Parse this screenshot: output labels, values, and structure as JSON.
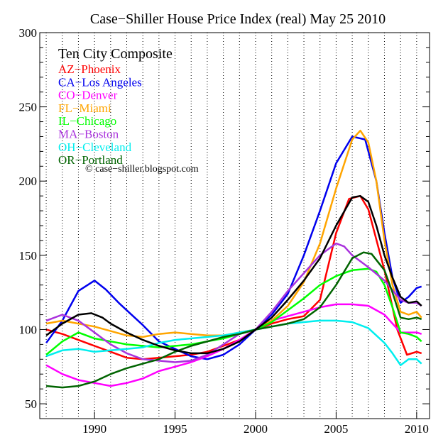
{
  "chart_data": {
    "type": "line",
    "title": "Case−Shiller House Price Index (real) May 25 2010",
    "legend_title": "Ten City Composite",
    "legend_placement": "top-left",
    "credit": "© case−shiller.blogspot.com",
    "xlabel": "",
    "ylabel": "",
    "xlim": [
      1986.6,
      2010.8
    ],
    "ylim": [
      40,
      300
    ],
    "x_ticks": [
      1990,
      1995,
      2000,
      2005,
      2010
    ],
    "y_ticks": [
      50,
      100,
      150,
      200,
      250,
      300
    ],
    "grid": "vertical dotted lines each year",
    "series": [
      {
        "name": "",
        "color": "#000000",
        "values": [
          [
            1987,
            96
          ],
          [
            1988,
            104
          ],
          [
            1989,
            110
          ],
          [
            1989.8,
            111
          ],
          [
            1990.5,
            108
          ],
          [
            1991,
            104
          ],
          [
            1992,
            98
          ],
          [
            1993,
            93
          ],
          [
            1994,
            89
          ],
          [
            1995,
            86
          ],
          [
            1996,
            84
          ],
          [
            1997,
            84
          ],
          [
            1998,
            87
          ],
          [
            1999,
            92
          ],
          [
            2000,
            100
          ],
          [
            2001,
            108
          ],
          [
            2002,
            120
          ],
          [
            2003,
            133
          ],
          [
            2004,
            148
          ],
          [
            2005,
            170
          ],
          [
            2006,
            189
          ],
          [
            2006.5,
            190
          ],
          [
            2007,
            186
          ],
          [
            2007.5,
            170
          ],
          [
            2008,
            150
          ],
          [
            2008.5,
            135
          ],
          [
            2009,
            122
          ],
          [
            2009.5,
            118
          ],
          [
            2010,
            119
          ],
          [
            2010.3,
            116
          ]
        ]
      },
      {
        "name": "AZ−Phoenix",
        "color": "#ff0000",
        "values": [
          [
            1987,
            100
          ],
          [
            1988,
            97
          ],
          [
            1989,
            93
          ],
          [
            1990,
            89
          ],
          [
            1991,
            85
          ],
          [
            1992,
            81
          ],
          [
            1993,
            80
          ],
          [
            1994,
            81
          ],
          [
            1995,
            82
          ],
          [
            1996,
            83
          ],
          [
            1997,
            85
          ],
          [
            1998,
            89
          ],
          [
            1999,
            93
          ],
          [
            2000,
            100
          ],
          [
            2001,
            104
          ],
          [
            2002,
            107
          ],
          [
            2003,
            109
          ],
          [
            2004,
            120
          ],
          [
            2005,
            165
          ],
          [
            2005.8,
            188
          ],
          [
            2006.5,
            190
          ],
          [
            2007,
            181
          ],
          [
            2008,
            140
          ],
          [
            2008.8,
            100
          ],
          [
            2009.4,
            83
          ],
          [
            2010,
            85
          ],
          [
            2010.3,
            84
          ]
        ]
      },
      {
        "name": "CA−Los Angeles",
        "color": "#0000ee",
        "values": [
          [
            1987,
            91
          ],
          [
            1988,
            106
          ],
          [
            1989,
            126
          ],
          [
            1990,
            133
          ],
          [
            1990.7,
            127
          ],
          [
            1991.5,
            118
          ],
          [
            1992,
            113
          ],
          [
            1993,
            103
          ],
          [
            1994,
            92
          ],
          [
            1995,
            87
          ],
          [
            1996,
            82
          ],
          [
            1997,
            80
          ],
          [
            1998,
            83
          ],
          [
            1999,
            90
          ],
          [
            2000,
            100
          ],
          [
            2001,
            110
          ],
          [
            2002,
            124
          ],
          [
            2003,
            150
          ],
          [
            2004,
            180
          ],
          [
            2005,
            212
          ],
          [
            2006,
            230
          ],
          [
            2006.8,
            228
          ],
          [
            2007.5,
            200
          ],
          [
            2008,
            165
          ],
          [
            2008.5,
            135
          ],
          [
            2009,
            118
          ],
          [
            2009.5,
            122
          ],
          [
            2010,
            128
          ],
          [
            2010.3,
            129
          ]
        ]
      },
      {
        "name": "CO−Denver",
        "color": "#ff00ff",
        "values": [
          [
            1987,
            76
          ],
          [
            1988,
            70
          ],
          [
            1989,
            66
          ],
          [
            1990,
            64
          ],
          [
            1991,
            62
          ],
          [
            1992,
            64
          ],
          [
            1993,
            67
          ],
          [
            1994,
            72
          ],
          [
            1995,
            75
          ],
          [
            1996,
            78
          ],
          [
            1997,
            82
          ],
          [
            1998,
            87
          ],
          [
            1999,
            93
          ],
          [
            2000,
            100
          ],
          [
            2001,
            106
          ],
          [
            2002,
            109
          ],
          [
            2003,
            112
          ],
          [
            2004,
            115
          ],
          [
            2005,
            117
          ],
          [
            2006,
            117
          ],
          [
            2007,
            116
          ],
          [
            2008,
            110
          ],
          [
            2009,
            98
          ],
          [
            2010,
            98
          ],
          [
            2010.3,
            97
          ]
        ]
      },
      {
        "name": "FL−Miami",
        "color": "#ffa500",
        "values": [
          [
            1987,
            104
          ],
          [
            1988,
            106
          ],
          [
            1989,
            104
          ],
          [
            1990,
            102
          ],
          [
            1991,
            99
          ],
          [
            1992,
            96
          ],
          [
            1993,
            95
          ],
          [
            1994,
            97
          ],
          [
            1995,
            98
          ],
          [
            1996,
            97
          ],
          [
            1997,
            96
          ],
          [
            1998,
            96
          ],
          [
            1999,
            98
          ],
          [
            2000,
            100
          ],
          [
            2001,
            106
          ],
          [
            2002,
            116
          ],
          [
            2003,
            132
          ],
          [
            2004,
            158
          ],
          [
            2005,
            195
          ],
          [
            2006,
            228
          ],
          [
            2006.5,
            234
          ],
          [
            2007,
            226
          ],
          [
            2007.5,
            200
          ],
          [
            2008,
            160
          ],
          [
            2008.5,
            130
          ],
          [
            2009,
            112
          ],
          [
            2009.5,
            110
          ],
          [
            2010,
            112
          ],
          [
            2010.3,
            108
          ]
        ]
      },
      {
        "name": "IL−Chicago",
        "color": "#00ff00",
        "values": [
          [
            1987,
            83
          ],
          [
            1988,
            92
          ],
          [
            1989,
            98
          ],
          [
            1990,
            94
          ],
          [
            1991,
            92
          ],
          [
            1992,
            90
          ],
          [
            1993,
            89
          ],
          [
            1994,
            88
          ],
          [
            1995,
            89
          ],
          [
            1996,
            90
          ],
          [
            1997,
            92
          ],
          [
            1998,
            94
          ],
          [
            1999,
            97
          ],
          [
            2000,
            100
          ],
          [
            2001,
            105
          ],
          [
            2002,
            113
          ],
          [
            2003,
            121
          ],
          [
            2004,
            130
          ],
          [
            2005,
            136
          ],
          [
            2006,
            140
          ],
          [
            2007,
            141
          ],
          [
            2007.5,
            139
          ],
          [
            2008,
            130
          ],
          [
            2008.5,
            115
          ],
          [
            2009,
            98
          ],
          [
            2009.5,
            97
          ],
          [
            2010,
            95
          ],
          [
            2010.3,
            92
          ]
        ]
      },
      {
        "name": "MA−Boston",
        "color": "#aa33dd",
        "values": [
          [
            1987,
            106
          ],
          [
            1988,
            110
          ],
          [
            1989,
            106
          ],
          [
            1990,
            98
          ],
          [
            1991,
            90
          ],
          [
            1992,
            84
          ],
          [
            1993,
            80
          ],
          [
            1994,
            79
          ],
          [
            1995,
            78
          ],
          [
            1996,
            79
          ],
          [
            1997,
            83
          ],
          [
            1998,
            90
          ],
          [
            1999,
            97
          ],
          [
            2000,
            100
          ],
          [
            2001,
            112
          ],
          [
            2002,
            126
          ],
          [
            2003,
            138
          ],
          [
            2004,
            150
          ],
          [
            2005,
            158
          ],
          [
            2005.5,
            156
          ],
          [
            2006,
            150
          ],
          [
            2007,
            142
          ],
          [
            2008,
            133
          ],
          [
            2009,
            120
          ],
          [
            2009.5,
            118
          ],
          [
            2010,
            118
          ],
          [
            2010.3,
            116
          ]
        ]
      },
      {
        "name": "OH−Cleveland",
        "color": "#00eeee",
        "values": [
          [
            1987,
            82
          ],
          [
            1988,
            86
          ],
          [
            1989,
            87
          ],
          [
            1990,
            85
          ],
          [
            1991,
            86
          ],
          [
            1992,
            87
          ],
          [
            1993,
            88
          ],
          [
            1994,
            91
          ],
          [
            1995,
            93
          ],
          [
            1996,
            94
          ],
          [
            1997,
            95
          ],
          [
            1998,
            96
          ],
          [
            1999,
            98
          ],
          [
            2000,
            100
          ],
          [
            2001,
            102
          ],
          [
            2002,
            104
          ],
          [
            2003,
            105
          ],
          [
            2004,
            106
          ],
          [
            2005,
            106
          ],
          [
            2006,
            105
          ],
          [
            2007,
            101
          ],
          [
            2008,
            91
          ],
          [
            2008.5,
            84
          ],
          [
            2009,
            76
          ],
          [
            2009.5,
            80
          ],
          [
            2010,
            80
          ],
          [
            2010.3,
            77
          ]
        ]
      },
      {
        "name": "OR−Portland",
        "color": "#006400",
        "values": [
          [
            1987,
            62
          ],
          [
            1988,
            61
          ],
          [
            1989,
            62
          ],
          [
            1990,
            65
          ],
          [
            1991,
            70
          ],
          [
            1992,
            74
          ],
          [
            1993,
            77
          ],
          [
            1994,
            80
          ],
          [
            1995,
            85
          ],
          [
            1996,
            89
          ],
          [
            1997,
            92
          ],
          [
            1998,
            95
          ],
          [
            1999,
            97
          ],
          [
            2000,
            100
          ],
          [
            2001,
            102
          ],
          [
            2002,
            104
          ],
          [
            2003,
            107
          ],
          [
            2004,
            115
          ],
          [
            2005,
            130
          ],
          [
            2006,
            148
          ],
          [
            2006.7,
            152
          ],
          [
            2007.2,
            151
          ],
          [
            2008,
            140
          ],
          [
            2008.5,
            125
          ],
          [
            2009,
            108
          ],
          [
            2009.5,
            107
          ],
          [
            2010,
            108
          ],
          [
            2010.3,
            107
          ]
        ]
      }
    ]
  }
}
